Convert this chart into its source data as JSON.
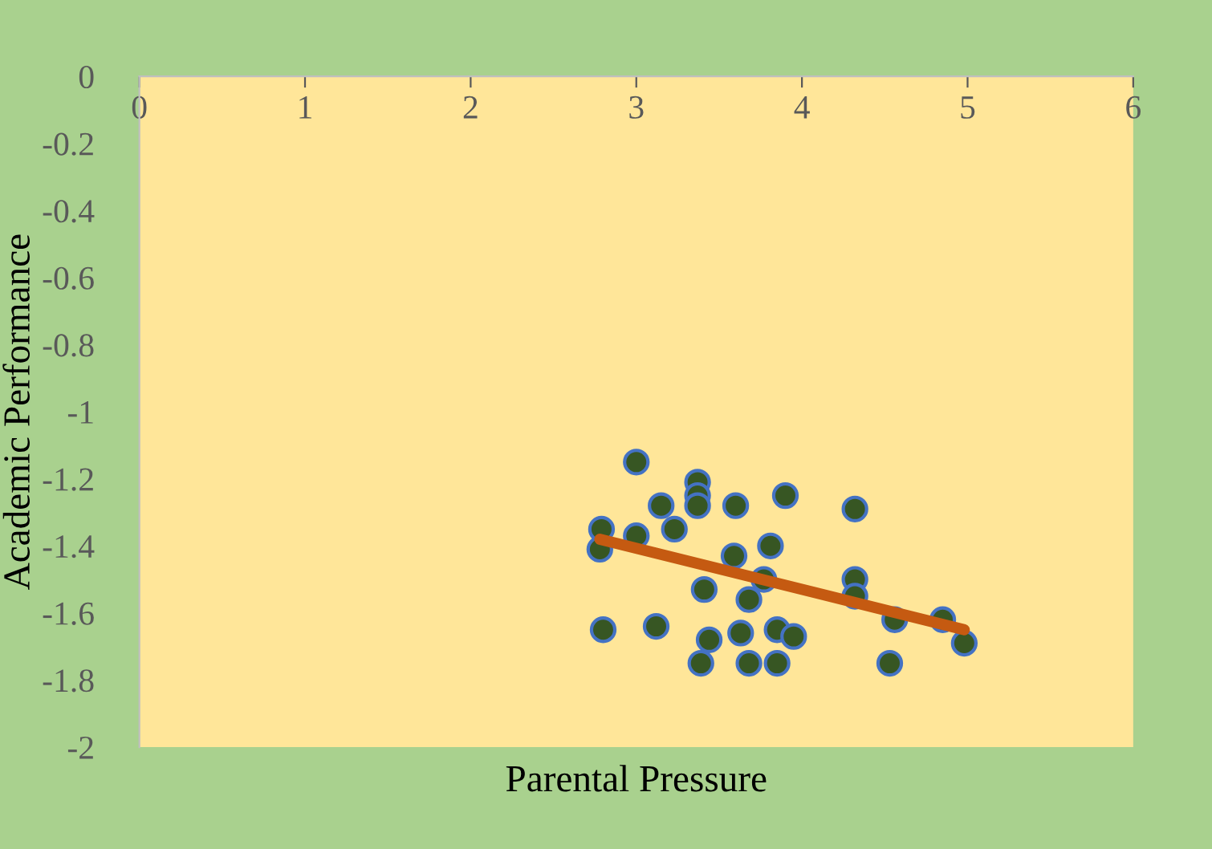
{
  "chart_data": {
    "type": "scatter",
    "xlabel": "Parental Pressure",
    "ylabel": "Academic Performance",
    "xlim": [
      0,
      6
    ],
    "xticks": [
      0,
      1,
      2,
      3,
      4,
      5,
      6
    ],
    "ylim": [
      -2,
      0
    ],
    "yticks": [
      -2,
      -1.8,
      -1.6,
      -1.4,
      -1.2,
      -1,
      -0.8,
      -0.6,
      -0.4,
      -0.2,
      0
    ],
    "grid": false,
    "legend": false,
    "series": [
      {
        "marker": "circle",
        "color": "#375623",
        "x": [
          3.0,
          3.37,
          3.37,
          3.37,
          3.15,
          3.6,
          3.9,
          4.32,
          2.79,
          3.0,
          3.23,
          2.78,
          3.81,
          3.59,
          3.77,
          4.32,
          4.32,
          3.41,
          3.68,
          2.8,
          3.12,
          3.44,
          3.63,
          3.85,
          3.95,
          4.56,
          4.85,
          4.98,
          3.39,
          3.68,
          3.85,
          4.53
        ],
        "values": [
          -1.15,
          -1.21,
          -1.25,
          -1.28,
          -1.28,
          -1.28,
          -1.25,
          -1.29,
          -1.35,
          -1.37,
          -1.35,
          -1.41,
          -1.4,
          -1.43,
          -1.5,
          -1.5,
          -1.55,
          -1.53,
          -1.56,
          -1.65,
          -1.64,
          -1.68,
          -1.66,
          -1.65,
          -1.67,
          -1.62,
          -1.62,
          -1.69,
          -1.75,
          -1.75,
          -1.75,
          -1.75
        ]
      },
      {
        "type": "line",
        "marker": "none",
        "color": "#c55a11",
        "x": [
          2.78,
          4.98
        ],
        "values": [
          -1.38,
          -1.65
        ]
      }
    ]
  }
}
